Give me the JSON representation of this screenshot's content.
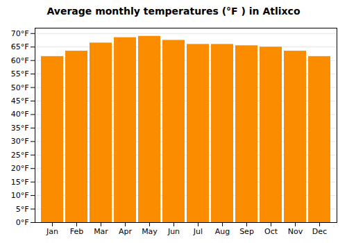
{
  "chart_data": {
    "type": "bar",
    "title": "Average monthly temperatures (°F ) in Atlixco",
    "categories": [
      "Jan",
      "Feb",
      "Mar",
      "Apr",
      "May",
      "Jun",
      "Jul",
      "Aug",
      "Sep",
      "Oct",
      "Nov",
      "Dec"
    ],
    "values": [
      61.5,
      63.5,
      66.5,
      68.5,
      69.0,
      67.5,
      66.0,
      66.0,
      65.5,
      65.0,
      63.5,
      61.5
    ],
    "color": "#FB8C00",
    "ylim": [
      0,
      72
    ],
    "yticks": [
      {
        "value": 0,
        "label": "0°F"
      },
      {
        "value": 5,
        "label": "5°F"
      },
      {
        "value": 10,
        "label": "10°F"
      },
      {
        "value": 15,
        "label": "15°F"
      },
      {
        "value": 20,
        "label": "20°F"
      },
      {
        "value": 25,
        "label": "25°F"
      },
      {
        "value": 30,
        "label": "30°F"
      },
      {
        "value": 35,
        "label": "35°F"
      },
      {
        "value": 40,
        "label": "40°F"
      },
      {
        "value": 45,
        "label": "45°F"
      },
      {
        "value": 50,
        "label": "50°F"
      },
      {
        "value": 55,
        "label": "55°F"
      },
      {
        "value": 60,
        "label": "60°F"
      },
      {
        "value": 65,
        "label": "65°F"
      },
      {
        "value": 70,
        "label": "70°F"
      }
    ],
    "grid": true
  }
}
